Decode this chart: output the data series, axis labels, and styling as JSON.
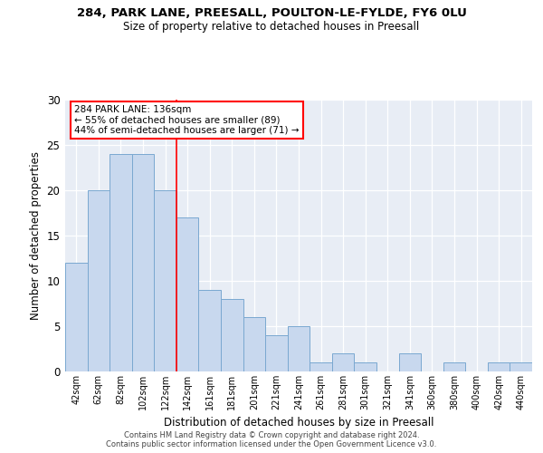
{
  "title1": "284, PARK LANE, PREESALL, POULTON-LE-FYLDE, FY6 0LU",
  "title2": "Size of property relative to detached houses in Preesall",
  "xlabel": "Distribution of detached houses by size in Preesall",
  "ylabel": "Number of detached properties",
  "categories": [
    "42sqm",
    "62sqm",
    "82sqm",
    "102sqm",
    "122sqm",
    "142sqm",
    "161sqm",
    "181sqm",
    "201sqm",
    "221sqm",
    "241sqm",
    "261sqm",
    "281sqm",
    "301sqm",
    "321sqm",
    "341sqm",
    "360sqm",
    "380sqm",
    "400sqm",
    "420sqm",
    "440sqm"
  ],
  "values": [
    12,
    20,
    24,
    24,
    20,
    17,
    9,
    8,
    6,
    4,
    5,
    1,
    2,
    1,
    0,
    2,
    0,
    1,
    0,
    1,
    1
  ],
  "bar_color": "#c8d8ee",
  "bar_edge_color": "#7aa8d0",
  "background_color": "#e8edf5",
  "red_line_index": 5,
  "annotation_line1": "284 PARK LANE: 136sqm",
  "annotation_line2": "← 55% of detached houses are smaller (89)",
  "annotation_line3": "44% of semi-detached houses are larger (71) →",
  "ylim": [
    0,
    30
  ],
  "yticks": [
    0,
    5,
    10,
    15,
    20,
    25,
    30
  ],
  "footer1": "Contains HM Land Registry data © Crown copyright and database right 2024.",
  "footer2": "Contains public sector information licensed under the Open Government Licence v3.0."
}
